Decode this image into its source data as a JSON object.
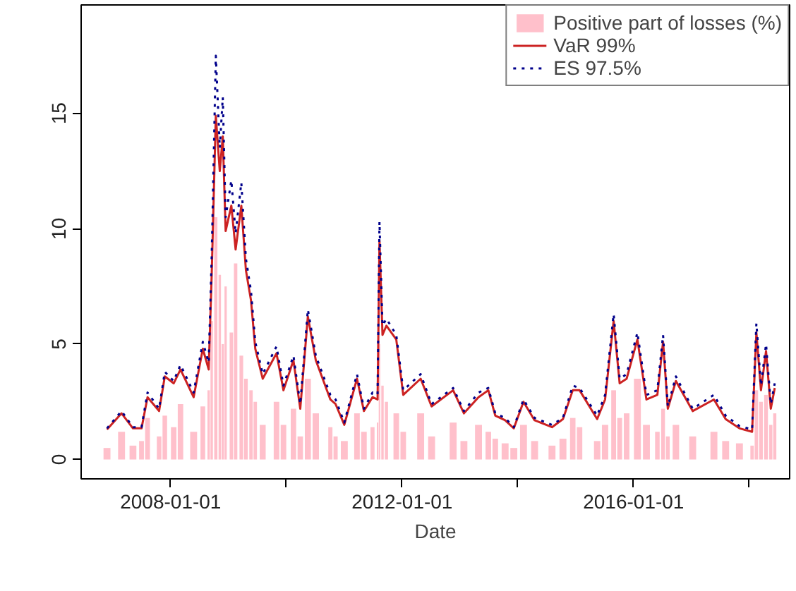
{
  "chart_data": {
    "type": "line",
    "xlabel": "Date",
    "x": [
      "2006-11-25",
      "2007-02-25",
      "2007-05-08",
      "2007-07-01",
      "2007-08-08",
      "2007-10-20",
      "2007-11-25",
      "2008-01-20",
      "2008-03-03",
      "2008-05-25",
      "2008-07-22",
      "2008-08-28",
      "2008-09-16",
      "2008-10-12",
      "2008-11-06",
      "2008-11-25",
      "2008-12-13",
      "2009-01-18",
      "2009-02-14",
      "2009-03-22",
      "2009-04-20",
      "2009-05-22",
      "2009-06-18",
      "2009-08-04",
      "2009-10-30",
      "2009-12-13",
      "2010-02-14",
      "2010-03-29",
      "2010-05-16",
      "2010-07-05",
      "2010-10-05",
      "2010-11-07",
      "2011-01-01",
      "2011-03-22",
      "2011-05-05",
      "2011-06-28",
      "2011-07-30",
      "2011-08-11",
      "2011-08-30",
      "2011-09-24",
      "2011-11-25",
      "2012-01-08",
      "2012-04-27",
      "2012-07-05",
      "2012-11-18",
      "2013-01-25",
      "2013-04-27",
      "2013-06-28",
      "2013-08-11",
      "2013-10-12",
      "2013-12-06",
      "2014-02-05",
      "2014-04-16",
      "2014-08-04",
      "2014-10-12",
      "2014-12-13",
      "2015-01-25",
      "2015-05-16",
      "2015-07-05",
      "2015-08-28",
      "2015-10-05",
      "2015-11-18",
      "2016-01-25",
      "2016-03-22",
      "2016-05-30",
      "2016-07-05",
      "2016-08-04",
      "2016-09-24",
      "2017-01-08",
      "2017-05-22",
      "2017-08-04",
      "2017-10-30",
      "2018-01-18",
      "2018-02-14",
      "2018-03-15",
      "2018-04-16",
      "2018-05-16",
      "2018-06-10"
    ],
    "series": [
      {
        "name": "Positive part of losses (%)",
        "type": "bar",
        "color": "#ffc0cb",
        "values": [
          0.5,
          1.2,
          0.6,
          0.8,
          1.8,
          1.0,
          1.9,
          1.4,
          2.4,
          1.2,
          2.3,
          3.0,
          6.0,
          10.5,
          8.0,
          5.0,
          7.5,
          5.5,
          8.5,
          4.5,
          3.5,
          3.0,
          2.5,
          1.5,
          2.5,
          1.5,
          2.2,
          1.0,
          3.5,
          2.0,
          1.4,
          1.0,
          0.8,
          2.0,
          1.2,
          1.4,
          1.6,
          5.0,
          3.2,
          2.5,
          2.0,
          1.2,
          2.0,
          1.0,
          1.6,
          0.8,
          1.5,
          1.2,
          0.9,
          0.7,
          0.5,
          1.5,
          0.8,
          0.6,
          0.9,
          1.8,
          1.4,
          0.8,
          1.5,
          3.0,
          1.8,
          2.0,
          3.5,
          1.5,
          1.2,
          2.2,
          1.0,
          1.5,
          1.0,
          1.2,
          0.8,
          0.7,
          0.6,
          3.0,
          2.5,
          2.8,
          1.5,
          2.0
        ]
      },
      {
        "name": "VaR 99%",
        "line_style": "solid",
        "color": "#cc2222",
        "values": [
          1.3,
          2.0,
          1.35,
          1.35,
          2.7,
          2.1,
          3.6,
          3.3,
          3.9,
          2.7,
          4.8,
          3.9,
          8.0,
          14.9,
          12.5,
          14.0,
          9.9,
          11.0,
          9.1,
          11.0,
          8.2,
          6.9,
          4.8,
          3.5,
          4.6,
          3.0,
          4.3,
          2.2,
          6.2,
          4.3,
          2.6,
          2.4,
          1.5,
          3.5,
          2.1,
          2.7,
          2.6,
          9.5,
          5.4,
          5.8,
          5.2,
          2.8,
          3.5,
          2.3,
          3.0,
          2.0,
          2.7,
          3.0,
          1.9,
          1.7,
          1.35,
          2.5,
          1.7,
          1.4,
          1.75,
          3.0,
          3.0,
          1.75,
          2.6,
          6.0,
          3.3,
          3.5,
          5.2,
          2.6,
          2.8,
          5.1,
          2.2,
          3.4,
          2.1,
          2.6,
          1.75,
          1.35,
          1.2,
          5.5,
          3.0,
          4.7,
          2.2,
          3.1
        ]
      },
      {
        "name": "ES 97.5%",
        "line_style": "dotted",
        "color": "#00008b",
        "values": [
          1.35,
          2.1,
          1.4,
          1.4,
          2.9,
          2.2,
          3.8,
          3.4,
          4.1,
          2.9,
          5.1,
          4.2,
          8.8,
          17.5,
          13.5,
          15.7,
          10.5,
          12.1,
          9.8,
          12.0,
          8.7,
          7.3,
          5.1,
          3.7,
          4.9,
          3.2,
          4.5,
          2.4,
          6.5,
          4.5,
          2.8,
          2.6,
          1.6,
          3.7,
          2.2,
          2.9,
          2.8,
          10.3,
          5.8,
          6.1,
          5.4,
          3.0,
          3.7,
          2.4,
          3.1,
          2.1,
          2.9,
          3.1,
          2.0,
          1.8,
          1.4,
          2.6,
          1.8,
          1.5,
          1.8,
          3.2,
          3.1,
          1.9,
          2.8,
          6.3,
          3.5,
          3.7,
          5.5,
          2.8,
          3.0,
          5.4,
          2.3,
          3.6,
          2.2,
          2.8,
          1.9,
          1.45,
          1.3,
          5.9,
          3.2,
          5.0,
          2.4,
          3.3
        ]
      }
    ],
    "xlim": [
      "2006-06-15",
      "2018-09-12"
    ],
    "xticks": [
      {
        "value": "2008-01-01",
        "label": "2008-01-01"
      },
      {
        "value": "2010-01-01",
        "label": null
      },
      {
        "value": "2012-01-01",
        "label": "2012-01-01"
      },
      {
        "value": "2014-01-01",
        "label": null
      },
      {
        "value": "2016-01-01",
        "label": "2016-01-01"
      },
      {
        "value": "2018-01-01",
        "label": null
      }
    ],
    "ylim": [
      -0.84,
      19.7
    ],
    "yticks": [
      0,
      5,
      10,
      15
    ],
    "grid": false,
    "legend": "top right"
  }
}
